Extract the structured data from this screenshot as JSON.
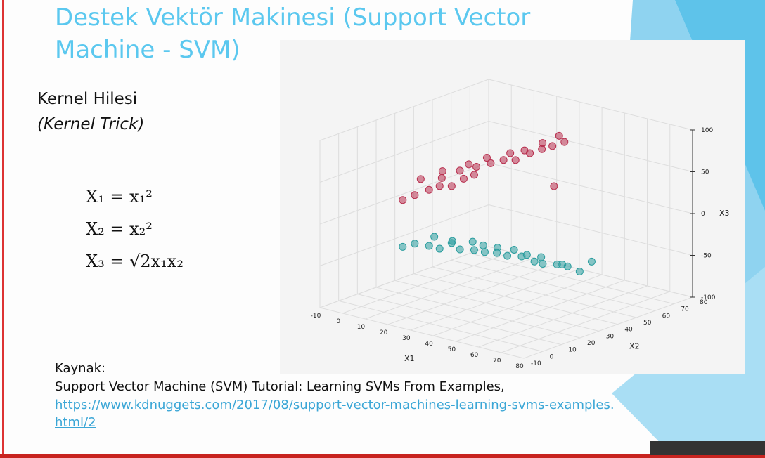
{
  "slide": {
    "title": "Destek Vektör Makinesi (Support Vector Machine - SVM)",
    "subtitle": "Kernel Hilesi",
    "subtitle_en": "(Kernel Trick)",
    "formulas": [
      "X₁ = x₁²",
      "X₂ = x₂²",
      "X₃ = √2x₁x₂"
    ],
    "source_label": "Kaynak:",
    "source_text": "Support Vector Machine (SVM) Tutorial: Learning SVMs From Examples,",
    "source_link": "https://www.kdnuggets.com/2017/08/support-vector-machines-learning-svms-examples.html/2"
  },
  "chart_data": {
    "type": "scatter3d",
    "x1_label": "X1",
    "x2_label": "X2",
    "x3_label": "X3",
    "x1lim": [
      -10,
      80
    ],
    "x2lim": [
      -10,
      80
    ],
    "x3lim": [
      -100,
      100
    ],
    "x1ticks": [
      -10,
      0,
      10,
      20,
      30,
      40,
      50,
      60,
      70,
      80
    ],
    "x2ticks": [
      -10,
      0,
      10,
      20,
      30,
      40,
      50,
      60,
      70,
      80
    ],
    "x3ticks": [
      -100,
      -50,
      0,
      50,
      100
    ],
    "series": [
      {
        "color": "#b8304f",
        "x1": [
          10,
          12,
          15,
          18,
          20,
          22,
          25,
          8,
          14,
          17,
          21,
          24,
          28,
          30,
          33,
          35,
          38,
          40,
          16,
          19,
          26,
          29,
          32,
          36,
          42,
          11
        ],
        "x2": [
          10,
          14,
          18,
          20,
          24,
          28,
          30,
          22,
          26,
          32,
          36,
          40,
          42,
          46,
          50,
          54,
          56,
          60,
          38,
          44,
          48,
          52,
          58,
          62,
          52,
          30
        ],
        "x3": [
          26,
          30,
          35,
          40,
          38,
          45,
          50,
          40,
          42,
          48,
          52,
          55,
          60,
          58,
          65,
          68,
          72,
          75,
          50,
          55,
          62,
          64,
          70,
          78,
          30,
          45
        ]
      },
      {
        "color": "#2a9d9e",
        "x1": [
          10,
          12,
          15,
          18,
          20,
          22,
          25,
          28,
          30,
          33,
          36,
          40,
          42,
          45,
          48,
          14,
          17,
          21,
          24,
          27,
          31,
          35,
          38,
          44,
          50,
          52
        ],
        "x2": [
          10,
          14,
          18,
          20,
          24,
          26,
          30,
          32,
          36,
          38,
          42,
          44,
          46,
          50,
          52,
          22,
          28,
          34,
          36,
          40,
          44,
          46,
          50,
          54,
          56,
          60
        ],
        "x3": [
          -30,
          -28,
          -32,
          -35,
          -30,
          -38,
          -40,
          -42,
          -45,
          -48,
          -50,
          -55,
          -58,
          -60,
          -62,
          -25,
          -33,
          -36,
          -40,
          -44,
          -47,
          -52,
          -56,
          -64,
          -70,
          -60
        ]
      }
    ]
  }
}
